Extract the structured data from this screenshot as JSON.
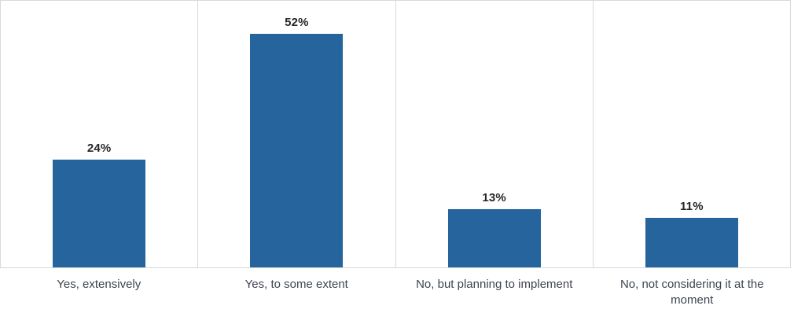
{
  "chart_data": {
    "type": "bar",
    "title": "",
    "xlabel": "",
    "ylabel": "",
    "categories": [
      "Yes, extensively",
      "Yes, to some extent",
      "No, but planning to implement",
      "No, not considering it at the moment"
    ],
    "values": [
      24,
      52,
      13,
      11
    ],
    "value_labels": [
      "24%",
      "52%",
      "13%",
      "11%"
    ],
    "ylim": [
      0,
      59
    ],
    "legend": "none",
    "grid": "outer border with vertical category separators, no horizontal gridlines, no value axis shown",
    "bar_color": "#25649c",
    "gridline_color": "#d9d9d9",
    "value_label_color": "#262626",
    "category_label_color": "#3e4450",
    "background_color": "#ffffff"
  }
}
